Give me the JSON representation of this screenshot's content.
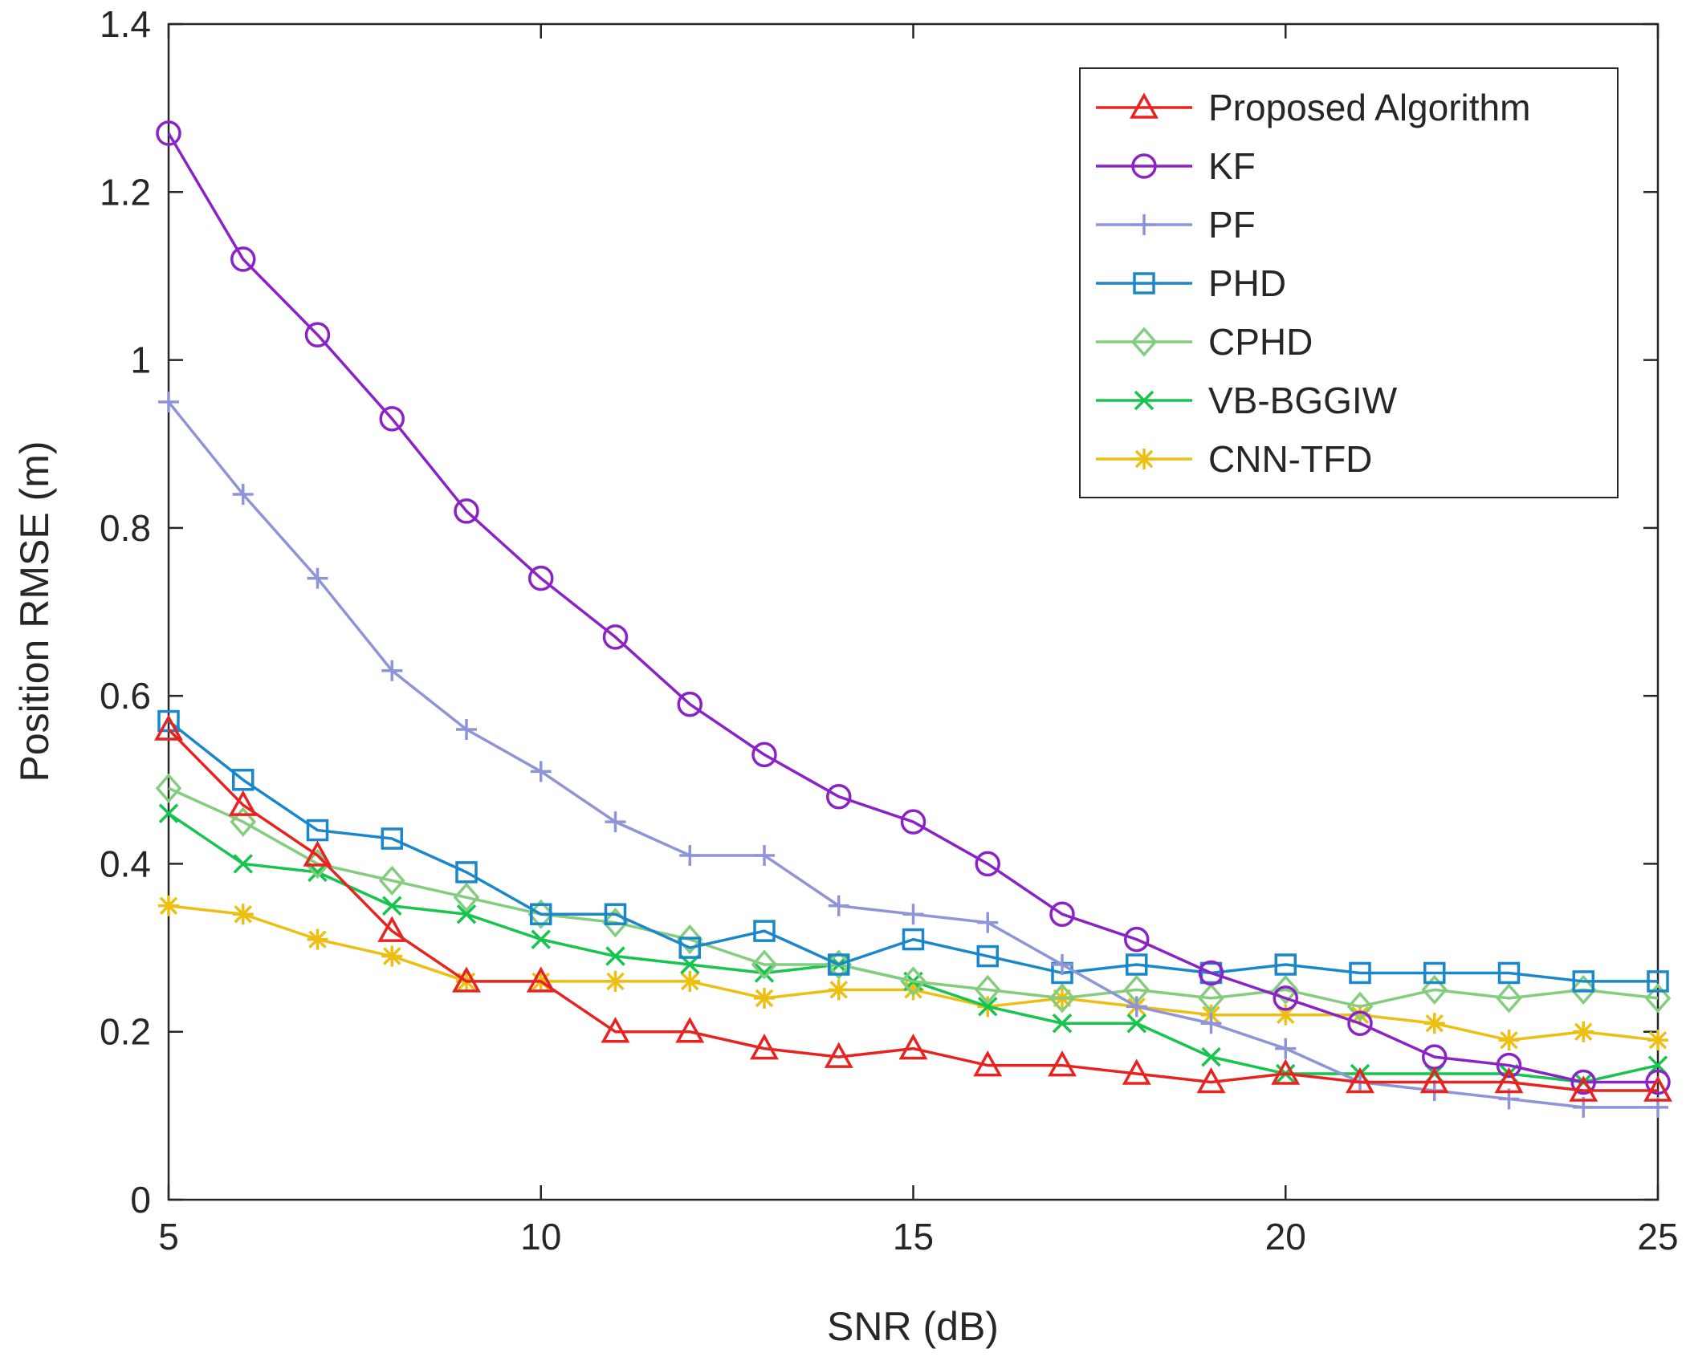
{
  "chart_data": {
    "type": "line",
    "title": "",
    "xlabel": "SNR (dB)",
    "ylabel": "Position RMSE (m)",
    "xlim": [
      5,
      25
    ],
    "ylim": [
      0,
      1.4
    ],
    "xticks": [
      5,
      10,
      15,
      20,
      25
    ],
    "xtick_labels": [
      "5",
      "10",
      "15",
      "20",
      "25"
    ],
    "yticks": [
      0,
      0.2,
      0.4,
      0.6,
      0.8,
      1,
      1.2,
      1.4
    ],
    "ytick_labels": [
      "0",
      "0.2",
      "0.4",
      "0.6",
      "0.8",
      "1",
      "1.2",
      "1.4"
    ],
    "grid": false,
    "legend_position": "top-right",
    "x": [
      5,
      6,
      7,
      8,
      9,
      10,
      11,
      12,
      13,
      14,
      15,
      16,
      17,
      18,
      19,
      20,
      21,
      22,
      23,
      24,
      25
    ],
    "series": [
      {
        "name": "Proposed Algorithm",
        "color": "#e8231f",
        "marker": "triangle",
        "values": [
          0.56,
          0.47,
          0.41,
          0.32,
          0.26,
          0.26,
          0.2,
          0.2,
          0.18,
          0.17,
          0.18,
          0.16,
          0.16,
          0.15,
          0.14,
          0.15,
          0.14,
          0.14,
          0.14,
          0.13,
          0.13
        ]
      },
      {
        "name": "KF",
        "color": "#8a22c8",
        "marker": "circle",
        "values": [
          1.27,
          1.12,
          1.03,
          0.93,
          0.82,
          0.74,
          0.67,
          0.59,
          0.53,
          0.48,
          0.45,
          0.4,
          0.34,
          0.31,
          0.27,
          0.24,
          0.21,
          0.17,
          0.16,
          0.14,
          0.14
        ]
      },
      {
        "name": "PF",
        "color": "#8f94d8",
        "marker": "plus",
        "values": [
          0.95,
          0.84,
          0.74,
          0.63,
          0.56,
          0.51,
          0.45,
          0.41,
          0.41,
          0.35,
          0.34,
          0.33,
          0.28,
          0.23,
          0.21,
          0.18,
          0.14,
          0.13,
          0.12,
          0.11,
          0.11
        ]
      },
      {
        "name": "PHD",
        "color": "#1a87cc",
        "marker": "square",
        "values": [
          0.57,
          0.5,
          0.44,
          0.43,
          0.39,
          0.34,
          0.34,
          0.3,
          0.32,
          0.28,
          0.31,
          0.29,
          0.27,
          0.28,
          0.27,
          0.28,
          0.27,
          0.27,
          0.27,
          0.26,
          0.26
        ]
      },
      {
        "name": "CPHD",
        "color": "#84cc7e",
        "marker": "diamond",
        "values": [
          0.49,
          0.45,
          0.4,
          0.38,
          0.36,
          0.34,
          0.33,
          0.31,
          0.28,
          0.28,
          0.26,
          0.25,
          0.24,
          0.25,
          0.24,
          0.25,
          0.23,
          0.25,
          0.24,
          0.25,
          0.24
        ]
      },
      {
        "name": "VB-BGGIW",
        "color": "#16c44e",
        "marker": "x",
        "values": [
          0.46,
          0.4,
          0.39,
          0.35,
          0.34,
          0.31,
          0.29,
          0.28,
          0.27,
          0.28,
          0.26,
          0.23,
          0.21,
          0.21,
          0.17,
          0.15,
          0.15,
          0.15,
          0.15,
          0.14,
          0.16
        ]
      },
      {
        "name": "CNN-TFD",
        "color": "#ecbf12",
        "marker": "asterisk",
        "values": [
          0.35,
          0.34,
          0.31,
          0.29,
          0.26,
          0.26,
          0.26,
          0.26,
          0.24,
          0.25,
          0.25,
          0.23,
          0.24,
          0.23,
          0.22,
          0.22,
          0.22,
          0.21,
          0.19,
          0.2,
          0.19
        ]
      }
    ]
  }
}
